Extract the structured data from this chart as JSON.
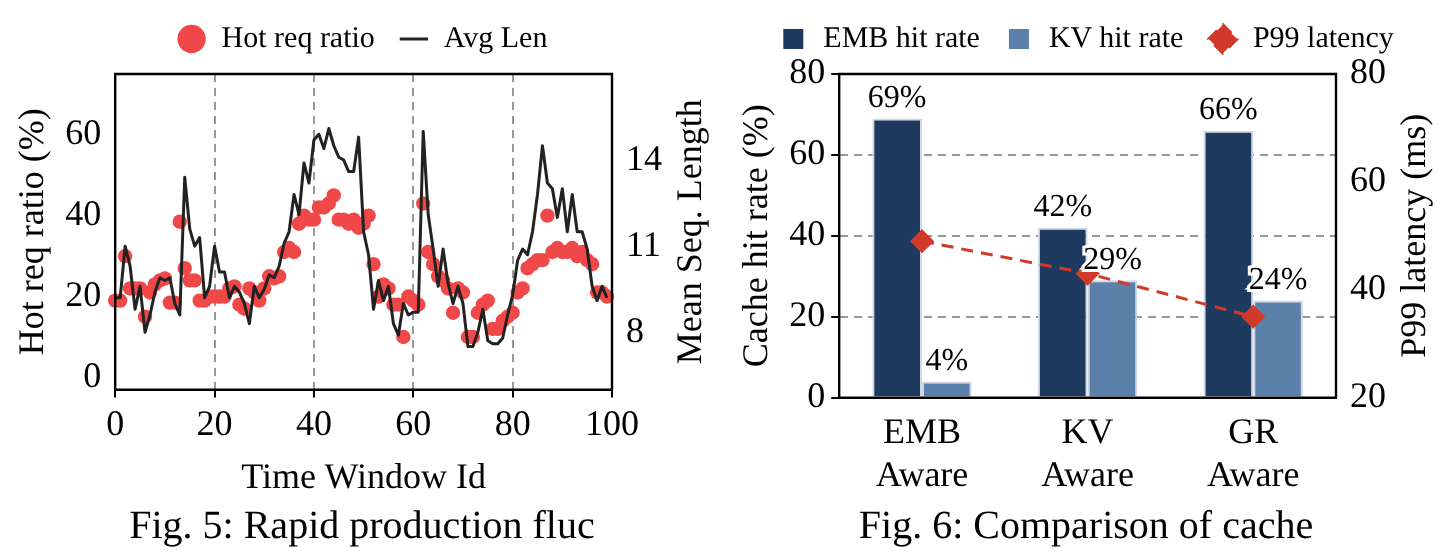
{
  "chart_data": [
    {
      "type": "scatter",
      "xlabel": "Time Window Id",
      "ylabel": "Hot req ratio (%)",
      "y2label": "Mean Seq. Length",
      "x": [
        0,
        1,
        2,
        3,
        4,
        5,
        6,
        7,
        8,
        9,
        10,
        11,
        12,
        13,
        14,
        15,
        16,
        17,
        18,
        19,
        20,
        21,
        22,
        23,
        24,
        25,
        26,
        27,
        28,
        29,
        30,
        31,
        32,
        33,
        34,
        35,
        36,
        37,
        38,
        39,
        40,
        41,
        42,
        43,
        44,
        45,
        46,
        47,
        48,
        49,
        50,
        51,
        52,
        53,
        54,
        55,
        56,
        57,
        58,
        59,
        60,
        61,
        62,
        63,
        64,
        65,
        66,
        67,
        68,
        69,
        70,
        71,
        72,
        73,
        74,
        75,
        76,
        77,
        78,
        79,
        80,
        81,
        82,
        83,
        84,
        85,
        86,
        87,
        88,
        89,
        90,
        91,
        92,
        93,
        94,
        95,
        96,
        97,
        98,
        99
      ],
      "series": [
        {
          "name": "Hot req ratio",
          "type": "scatter",
          "color": "#f04848",
          "marker": "circle",
          "values": [
            19,
            19,
            30,
            22,
            22,
            22,
            15,
            21,
            23,
            24,
            24.5,
            18.5,
            18.5,
            38.5,
            27,
            24,
            24,
            19,
            19,
            20,
            20,
            20,
            20,
            22,
            22.5,
            18,
            17,
            22,
            21,
            19,
            22,
            25,
            24.5,
            25,
            31,
            32,
            31,
            38,
            40,
            39,
            39,
            42,
            42,
            43,
            45,
            39,
            39,
            38,
            39,
            37,
            38,
            40,
            28,
            20,
            23,
            22,
            18,
            18,
            10,
            20,
            19,
            18,
            43,
            31,
            28,
            25,
            24,
            22,
            16,
            22,
            21,
            10,
            10,
            16,
            18,
            19,
            12,
            12,
            14,
            15,
            16,
            21,
            22,
            27,
            28,
            29,
            29,
            40,
            31,
            32,
            31,
            31,
            32,
            30,
            31,
            29,
            28,
            21,
            21,
            20
          ]
        },
        {
          "name": "Avg Len",
          "type": "line",
          "color": "#222222",
          "marker": "none",
          "axis": "y2",
          "values": [
            9.2,
            9.2,
            11,
            10.3,
            8.8,
            9.6,
            8,
            8.6,
            9.4,
            9.9,
            9.8,
            9.9,
            9,
            8.6,
            13.4,
            11.6,
            11,
            11.3,
            9.2,
            9.6,
            11,
            10.1,
            10.1,
            9.2,
            9.6,
            9.4,
            9,
            8.3,
            9.6,
            9.2,
            9.5,
            10,
            9.9,
            10.3,
            11.1,
            11.5,
            12.8,
            12.1,
            13.9,
            13.2,
            14.7,
            14.9,
            14.4,
            15.1,
            14.5,
            14.1,
            14,
            13.6,
            13.6,
            14.8,
            11.5,
            10.7,
            8.8,
            9.8,
            9.1,
            9.6,
            8.3,
            7.9,
            9,
            8.6,
            8.7,
            8.7,
            15,
            12.1,
            10.9,
            9.6,
            10.9,
            9.7,
            9,
            9.6,
            9,
            7.5,
            7.5,
            8,
            8.8,
            7.7,
            7.6,
            7.6,
            7.8,
            8.6,
            9.3,
            10.5,
            10.9,
            10.7,
            11.5,
            12.8,
            14.5,
            13.2,
            13,
            12,
            13,
            11.5,
            12.8,
            11.5,
            11.5,
            10.9,
            9.6,
            9.1,
            9.6,
            9.2
          ]
        }
      ],
      "xlim": [
        0,
        100
      ],
      "xticks": [
        0,
        20,
        40,
        60,
        80,
        100
      ],
      "ylim": [
        -3,
        75
      ],
      "yticks": [
        0,
        20,
        40,
        60
      ],
      "y2lim": [
        6,
        17
      ],
      "y2ticks": [
        8,
        11,
        14
      ],
      "grid": "x",
      "legend": "top",
      "annotations": [
        "Fig. 5: Rapid production fluc"
      ]
    },
    {
      "type": "bar",
      "ylabel": "Cache hit rate (%)",
      "y2label": "P99 latency (ms)",
      "categories": [
        "EMB Aware",
        "KV Aware",
        "GR Aware"
      ],
      "series": [
        {
          "name": "EMB hit rate",
          "color": "#1e3a5f",
          "values": [
            69,
            42,
            66
          ],
          "value_labels": [
            "69%",
            "42%",
            "66%"
          ]
        },
        {
          "name": "KV hit rate",
          "color": "#5b80aa",
          "values": [
            4,
            29,
            24
          ],
          "value_labels": [
            "4%",
            "29%",
            "24%"
          ]
        },
        {
          "name": "P99 latency",
          "type": "line",
          "color": "#d03a2a",
          "marker": "diamond",
          "line_style": "dashed",
          "axis": "y2",
          "values": [
            49,
            43,
            35
          ]
        }
      ],
      "ylim": [
        0,
        80
      ],
      "yticks": [
        0,
        20,
        40,
        60,
        80
      ],
      "y2lim": [
        20,
        80
      ],
      "y2ticks": [
        20,
        40,
        60,
        80
      ],
      "grid": "y",
      "legend": "top",
      "annotations": [
        "Fig. 6: Comparison of cache"
      ]
    }
  ]
}
